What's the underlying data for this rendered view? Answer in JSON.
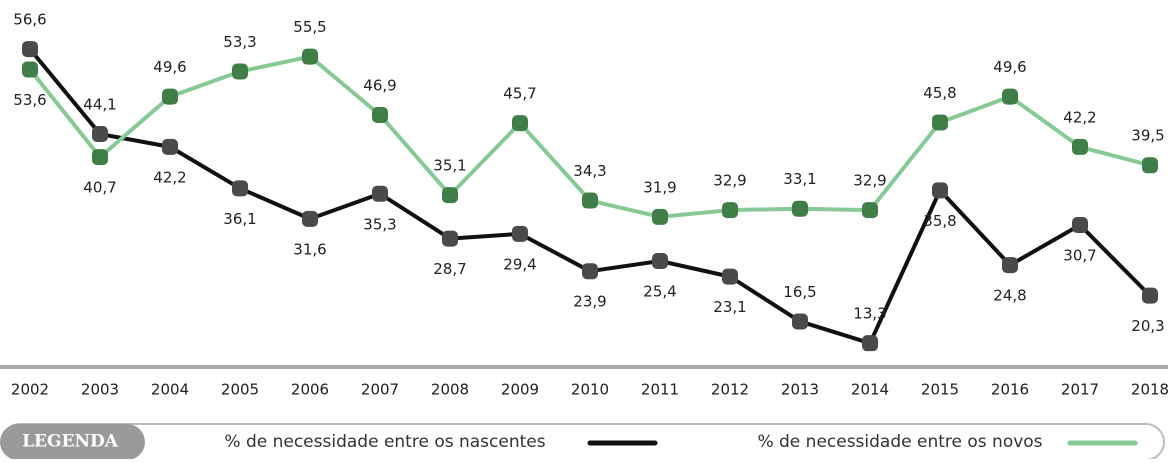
{
  "chart_data": {
    "type": "line",
    "x": [
      "2002",
      "2003",
      "2004",
      "2005",
      "2006",
      "2007",
      "2008",
      "2009",
      "2010",
      "2011",
      "2012",
      "2013",
      "2014",
      "2015",
      "2016",
      "2017",
      "2018"
    ],
    "ylim": [
      10,
      60
    ],
    "legend_title": "LEGENDA",
    "series": [
      {
        "name": "% de necessidade entre os nascentes",
        "color": "#111111",
        "marker_color": "#4a4a4a",
        "values": [
          56.6,
          44.1,
          42.2,
          36.1,
          31.6,
          35.3,
          28.7,
          29.4,
          23.9,
          25.4,
          23.1,
          16.5,
          13.3,
          35.8,
          24.8,
          30.7,
          20.3
        ],
        "value_labels": [
          "56,6",
          "44,1",
          "42,2",
          "36,1",
          "31,6",
          "35,3",
          "28,7",
          "29,4",
          "23,9",
          "25,4",
          "23,1",
          "16,5",
          "13,3",
          "35,8",
          "24,8",
          "30,7",
          "20,3"
        ]
      },
      {
        "name": "% de necessidade entre os novos",
        "color": "#86c995",
        "marker_color": "#3f7f47",
        "values": [
          53.6,
          40.7,
          49.6,
          53.3,
          55.5,
          46.9,
          35.1,
          45.7,
          34.3,
          31.9,
          32.9,
          33.1,
          32.9,
          45.8,
          49.6,
          42.2,
          39.5
        ],
        "value_labels": [
          "53,6",
          "40,7",
          "49,6",
          "53,3",
          "55,5",
          "46,9",
          "35,1",
          "45,7",
          "34,3",
          "31,9",
          "32,9",
          "33,1",
          "32,9",
          "45,8",
          "49,6",
          "42,2",
          "39,5"
        ]
      }
    ]
  }
}
